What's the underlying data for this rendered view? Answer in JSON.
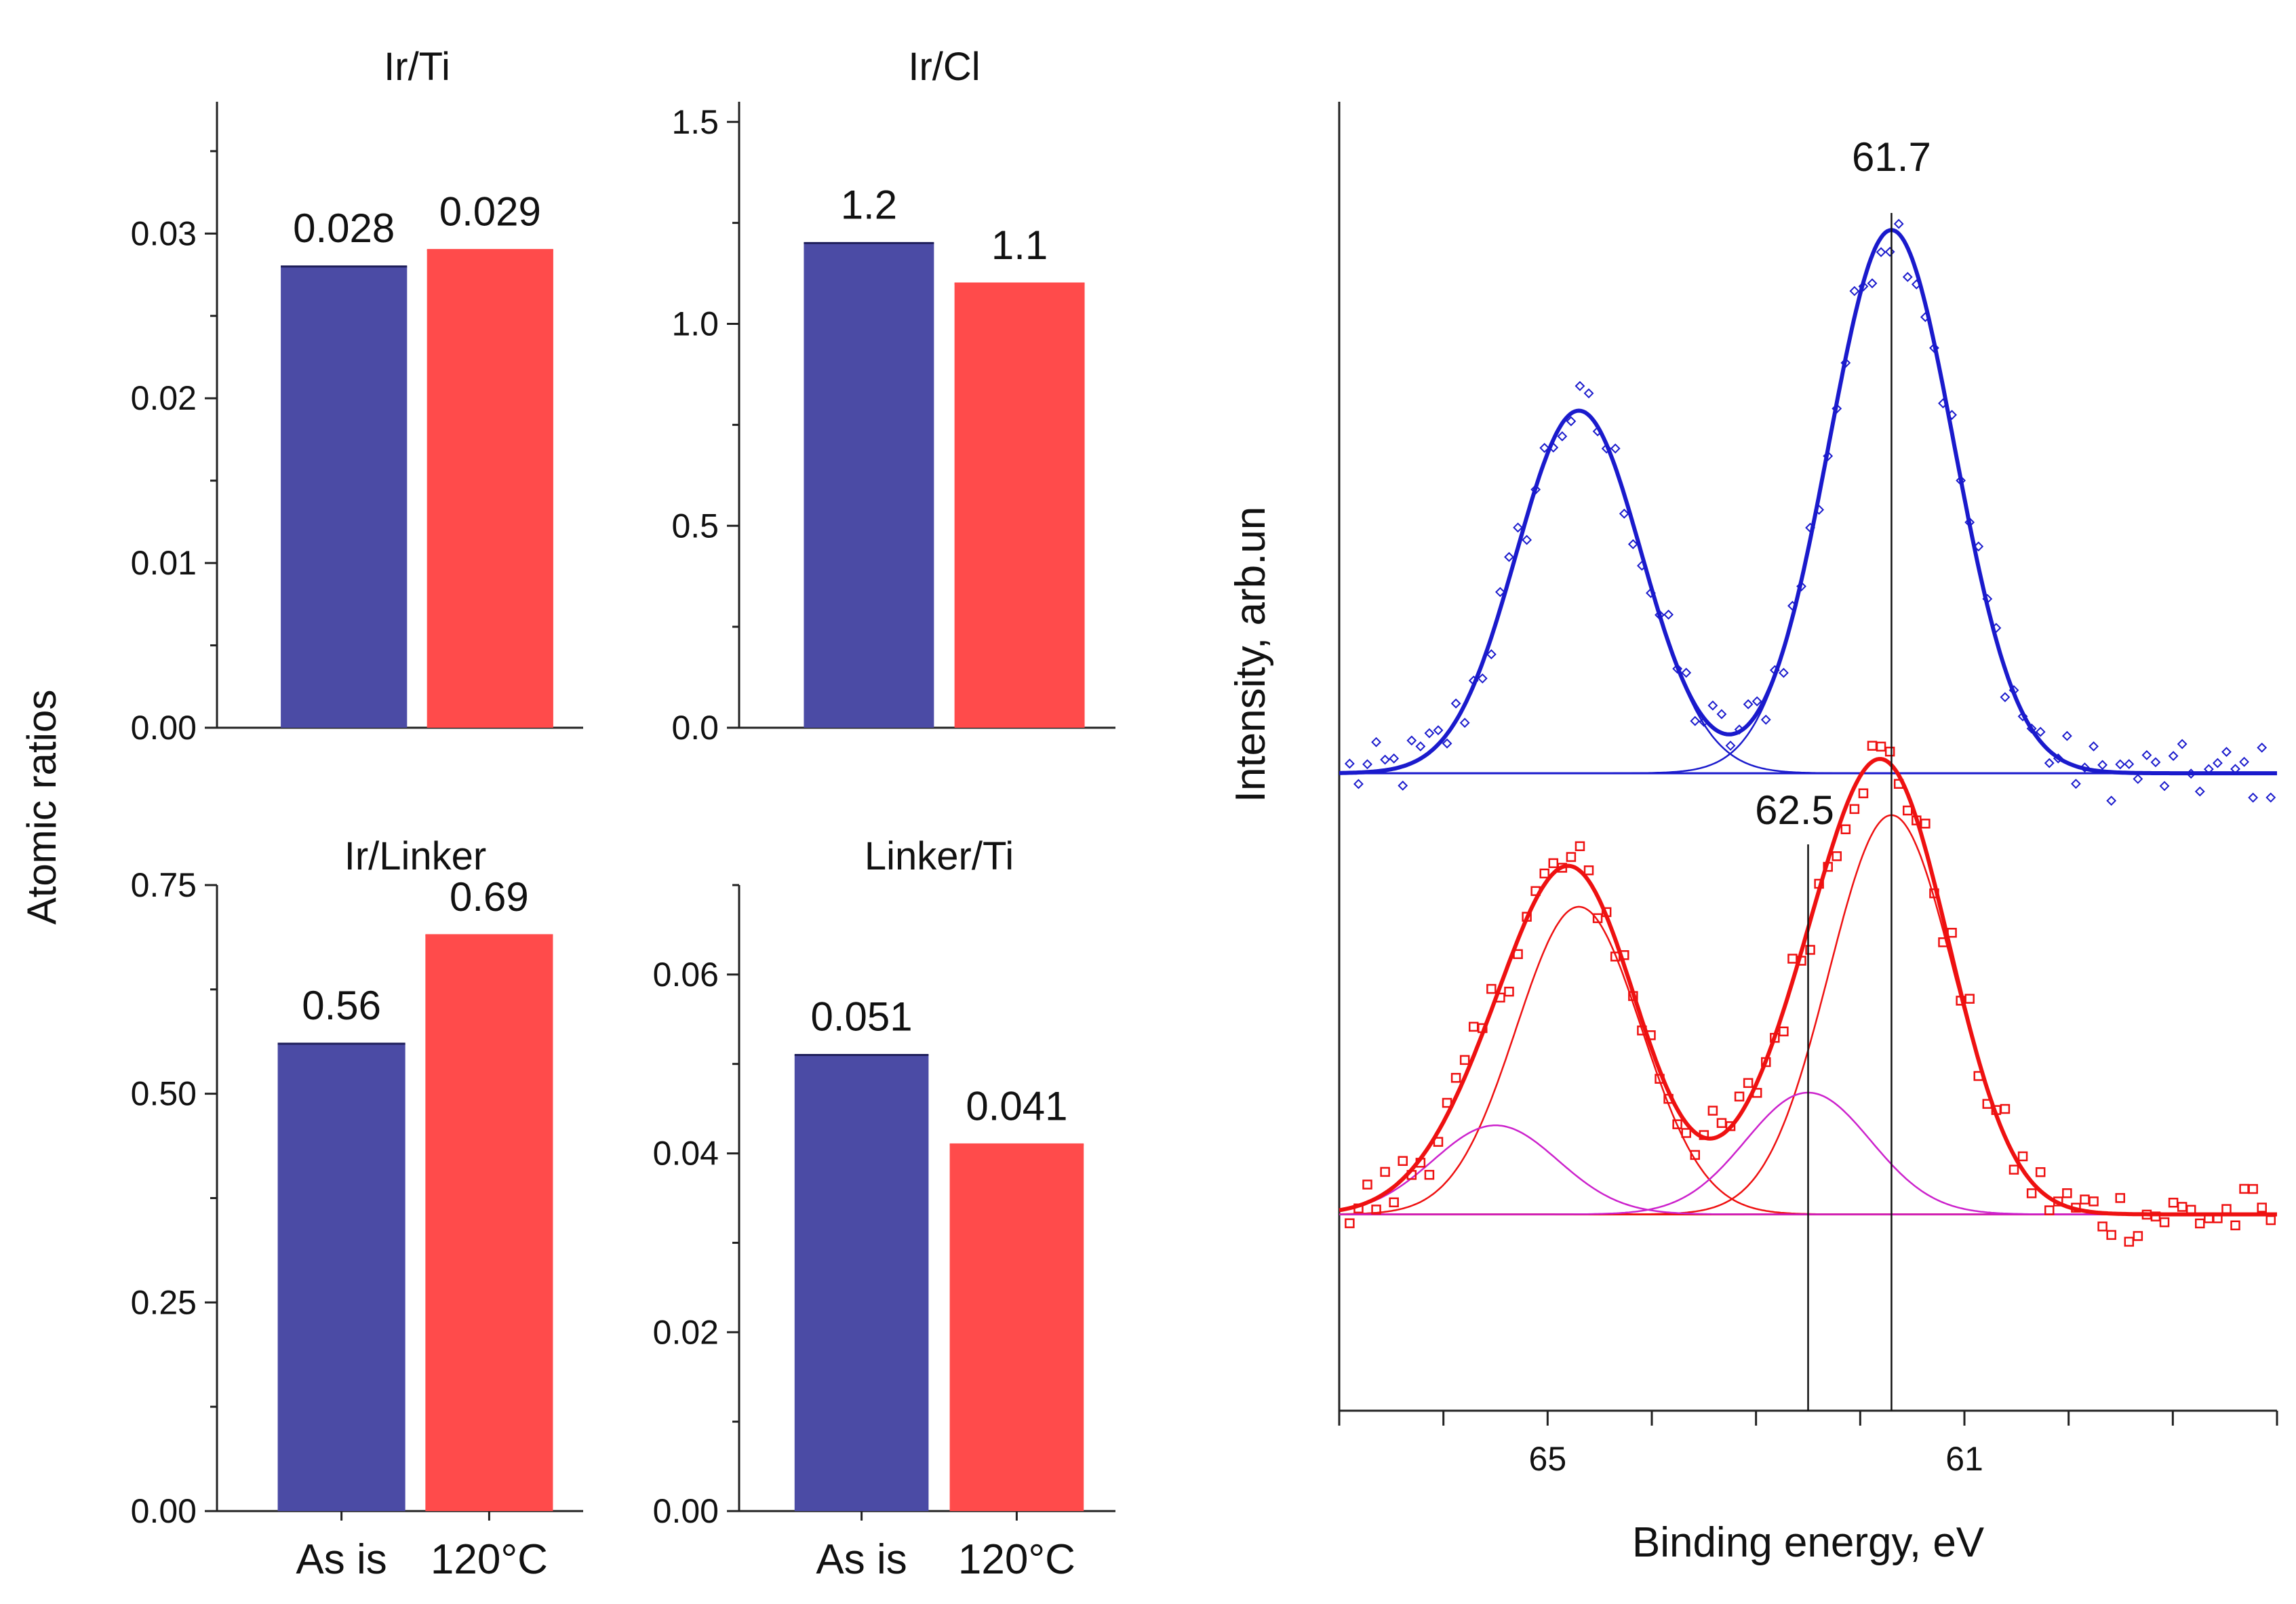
{
  "figure": {
    "y_axis_label": "Atomic ratios",
    "categories": [
      "As is",
      "120°C"
    ],
    "colors": {
      "as_is": "#4b4ba5",
      "heated": "#ff4b4b"
    }
  },
  "chart_data": [
    {
      "id": "ir_ti",
      "type": "bar",
      "title": "Ir/Ti",
      "categories": [
        "As is",
        "120°C"
      ],
      "values": [
        0.028,
        0.029
      ],
      "value_labels": [
        "0.028",
        "0.029"
      ],
      "ylim": [
        0,
        0.038
      ],
      "yticks": [
        0.0,
        0.01,
        0.02,
        0.03
      ],
      "ytick_labels": [
        "0.00",
        "0.01",
        "0.02",
        "0.03"
      ],
      "show_xlabels": false
    },
    {
      "id": "ir_cl",
      "type": "bar",
      "title": "Ir/Cl",
      "categories": [
        "As is",
        "120°C"
      ],
      "values": [
        1.2,
        1.1
      ],
      "value_labels": [
        "1.2",
        "1.1"
      ],
      "ylim": [
        0,
        1.55
      ],
      "yticks": [
        0.0,
        0.5,
        1.0,
        1.5
      ],
      "ytick_labels": [
        "0.0",
        "0.5",
        "1.0",
        "1.5"
      ],
      "show_xlabels": false
    },
    {
      "id": "ir_linker",
      "type": "bar",
      "title": "Ir/Linker",
      "categories": [
        "As is",
        "120°C"
      ],
      "values": [
        0.56,
        0.69
      ],
      "value_labels": [
        "0.56",
        "0.69"
      ],
      "ylim": [
        0,
        0.75
      ],
      "yticks": [
        0.0,
        0.25,
        0.5,
        0.75
      ],
      "ytick_labels": [
        "0.00",
        "0.25",
        "0.50",
        "0.75"
      ],
      "show_xlabels": true
    },
    {
      "id": "linker_ti",
      "type": "bar",
      "title": "Linker/Ti",
      "categories": [
        "As is",
        "120°C"
      ],
      "values": [
        0.051,
        0.041
      ],
      "value_labels": [
        "0.051",
        "0.041"
      ],
      "ylim": [
        0,
        0.07
      ],
      "yticks": [
        0.0,
        0.02,
        0.04,
        0.06
      ],
      "ytick_labels": [
        "0.00",
        "0.02",
        "0.04",
        "0.06"
      ],
      "show_xlabels": true
    },
    {
      "id": "xps_ir4f",
      "type": "line",
      "xlabel": "Binding energy, eV",
      "ylabel": "Intensity, arb.un",
      "xlim": [
        67.0,
        58.0
      ],
      "ylim": [
        0,
        1
      ],
      "xticks": [
        67,
        66,
        65,
        64,
        63,
        62,
        61,
        60,
        59,
        58
      ],
      "xtick_labels": [
        "65",
        "61"
      ],
      "xtick_label_values": [
        65,
        61
      ],
      "series": [
        {
          "name": "As is",
          "color": "#1a1acc",
          "baseline": 0.487,
          "peaks": [
            {
              "center": 61.7,
              "height": 0.415,
              "sigma": 0.6
            },
            {
              "center": 64.7,
              "height": 0.277,
              "sigma": 0.6
            }
          ],
          "marker": "diamond",
          "vline": 61.7,
          "vline_label": "61.7"
        },
        {
          "name": "120°C",
          "color": "#ee1111",
          "component_color": "#cc22cc",
          "baseline": 0.15,
          "peaks": [
            {
              "center": 61.7,
              "height": 0.305,
              "sigma": 0.6
            },
            {
              "center": 64.7,
              "height": 0.235,
              "sigma": 0.6
            },
            {
              "center": 62.5,
              "height": 0.093,
              "sigma": 0.6,
              "minor": true
            },
            {
              "center": 65.5,
              "height": 0.068,
              "sigma": 0.6,
              "minor": true
            }
          ],
          "marker": "square",
          "vline": 62.5,
          "vline_label": "62.5"
        }
      ]
    }
  ]
}
